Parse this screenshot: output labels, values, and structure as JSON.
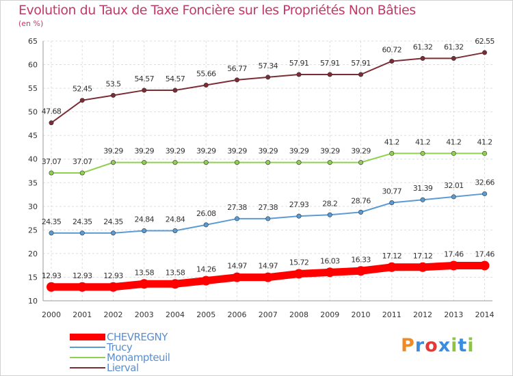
{
  "chart_data": {
    "type": "line",
    "title": "Evolution du Taux de Taxe Foncière sur les Propriétés Non Bâties",
    "unit_label": "(en %)",
    "ylim": [
      10,
      65
    ],
    "yticks": [
      10,
      15,
      20,
      25,
      30,
      35,
      40,
      45,
      50,
      55,
      60,
      65
    ],
    "x": [
      "2000",
      "2001",
      "2002",
      "2003",
      "2004",
      "2005",
      "2006",
      "2007",
      "2008",
      "2009",
      "2010",
      "2011",
      "2012",
      "2013",
      "2014"
    ],
    "series": [
      {
        "name": "CHEVREGNY",
        "color": "#ff0000",
        "values": [
          12.93,
          12.93,
          12.93,
          13.58,
          13.58,
          14.26,
          14.97,
          14.97,
          15.72,
          16.03,
          16.33,
          17.12,
          17.12,
          17.46,
          17.46
        ],
        "labels": [
          "12.93",
          "12.93",
          "12.93",
          "13.58",
          "13.58",
          "14.26",
          "14.97",
          "14.97",
          "15.72",
          "16.03",
          "16.33",
          "17.12",
          "17.12",
          "17.46",
          "17.46"
        ]
      },
      {
        "name": "Trucy",
        "color": "#5b9bd5",
        "values": [
          24.35,
          24.35,
          24.35,
          24.84,
          24.84,
          26.08,
          27.38,
          27.38,
          27.93,
          28.2,
          28.76,
          30.77,
          31.39,
          32.01,
          32.66
        ],
        "labels": [
          "24.35",
          "24.35",
          "24.35",
          "24.84",
          "24.84",
          "26.08",
          "27.38",
          "27.38",
          "27.93",
          "28.2",
          "28.76",
          "30.77",
          "31.39",
          "32.01",
          "32.66"
        ]
      },
      {
        "name": "Monampteuil",
        "color": "#8fd14f",
        "values": [
          37.07,
          37.07,
          39.29,
          39.29,
          39.29,
          39.29,
          39.29,
          39.29,
          39.29,
          39.29,
          39.29,
          41.2,
          41.2,
          41.2,
          41.2
        ],
        "labels": [
          "37.07",
          "37.07",
          "39.29",
          "39.29",
          "39.29",
          "39.29",
          "39.29",
          "39.29",
          "39.29",
          "39.29",
          "39.29",
          "41.2",
          "41.2",
          "41.2",
          "41.2"
        ]
      },
      {
        "name": "Lierval",
        "color": "#7b2c35",
        "values": [
          47.68,
          52.45,
          53.5,
          54.57,
          54.57,
          55.66,
          56.77,
          57.34,
          57.91,
          57.91,
          57.91,
          60.72,
          61.32,
          61.32,
          62.55
        ],
        "labels": [
          "47.68",
          "52.45",
          "53.5",
          "54.57",
          "54.57",
          "55.66",
          "56.77",
          "57.34",
          "57.91",
          "57.91",
          "57.91",
          "60.72",
          "61.32",
          "61.32",
          "62.55"
        ]
      }
    ],
    "legend_position": "bottom-left",
    "grid": true
  },
  "logo": {
    "text": "Proxiti",
    "letters": [
      "P",
      "r",
      "o",
      "x",
      "i",
      "t",
      "i"
    ],
    "colors": [
      "#f08a24",
      "#3a8dde",
      "#e53935",
      "#3a8dde",
      "#8cc63f",
      "#3a8dde",
      "#8cc63f"
    ]
  }
}
